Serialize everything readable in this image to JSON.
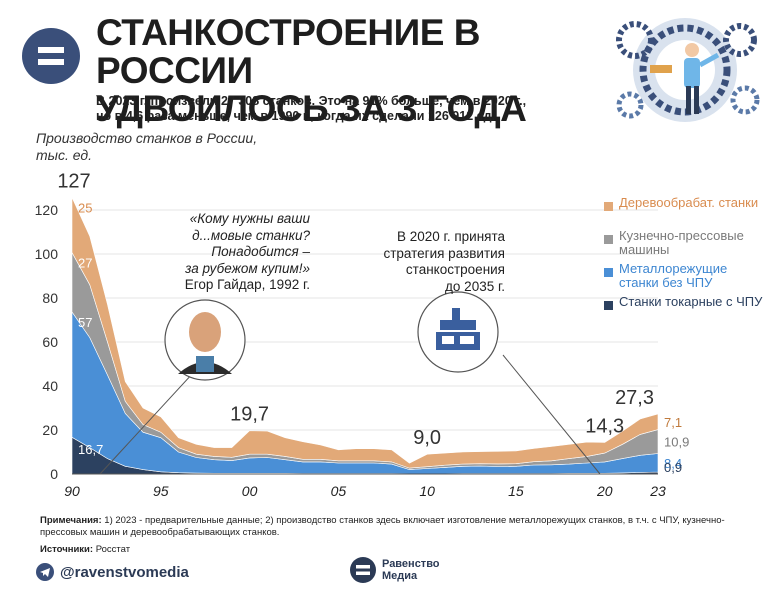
{
  "header": {
    "title_line1": "СТАНКОСТРОЕНИЕ В РОССИИ",
    "title_line2": "УДВОИЛОСЬ ЗА 3 ГОДА",
    "subtitle_line1": "В 2023 г. произвели 27 308 станков. Это на 91% больше, чем в 2020 г.,",
    "subtitle_line2": "но в 4,6 раза меньше, чем в 1990 г., когда их сделали 126 912 ед."
  },
  "quote": {
    "line1": "«Кому нужны ваши",
    "line2": "д...мовые станки?",
    "line3": "Понадобится –",
    "line4": "за рубежом купим!»",
    "author": "Егор Гайдар, 1992 г."
  },
  "note2020": {
    "line1": "В 2020 г. принята",
    "line2": "стратегия развития",
    "line3": "станкостроения",
    "line4": "до 2035 г."
  },
  "footer": {
    "notes_label": "Примечания:",
    "notes_text": " 1) 2023 - предварительные данные; 2) производство станков здесь включает изготовление металлорежущих станков, в т.ч. с ЧПУ, кузнечно-прессовых машин и деревообрабатывающих станков.",
    "sources_label": "Источники:",
    "sources_text": " Росстат",
    "telegram": "@ravenstvomedia",
    "brand_line1": "Равенство",
    "brand_line2": "Медиа"
  },
  "chart_data": {
    "type": "area",
    "stacked": true,
    "y_title_line1": "Производство станков в России,",
    "y_title_line2": "тыс. ед.",
    "ylim": [
      0,
      130
    ],
    "xlim": [
      1990,
      2023
    ],
    "y_ticks": [
      0,
      20,
      40,
      60,
      80,
      100,
      120
    ],
    "x_ticks": [
      {
        "value": 1990,
        "label": "90"
      },
      {
        "value": 1995,
        "label": "95"
      },
      {
        "value": 2000,
        "label": "00"
      },
      {
        "value": 2005,
        "label": "05"
      },
      {
        "value": 2010,
        "label": "10"
      },
      {
        "value": 2015,
        "label": "15"
      },
      {
        "value": 2020,
        "label": "20"
      },
      {
        "value": 2023,
        "label": "23"
      }
    ],
    "x": [
      1990,
      1991,
      1992,
      1993,
      1994,
      1995,
      1996,
      1997,
      1998,
      1999,
      2000,
      2001,
      2002,
      2003,
      2004,
      2005,
      2006,
      2007,
      2008,
      2009,
      2010,
      2011,
      2012,
      2013,
      2014,
      2015,
      2016,
      2017,
      2018,
      2019,
      2020,
      2021,
      2022,
      2023
    ],
    "series": [
      {
        "name": "Станки токарные с ЧПУ",
        "color": "#2c4160",
        "values": [
          16.7,
          12,
          7,
          3.5,
          2,
          1,
          0.6,
          0.4,
          0.3,
          0.3,
          0.3,
          0.3,
          0.3,
          0.2,
          0.2,
          0.2,
          0.2,
          0.2,
          0.2,
          0.1,
          0.1,
          0.1,
          0.2,
          0.2,
          0.2,
          0.2,
          0.2,
          0.2,
          0.3,
          0.3,
          0.3,
          0.5,
          0.7,
          0.9
        ]
      },
      {
        "name": "Металлорежущие станки без ЧПУ",
        "color": "#4a8fd6",
        "values": [
          57,
          50,
          38,
          24,
          17,
          15.5,
          9.4,
          7.1,
          6.2,
          5.8,
          7,
          7.2,
          6.2,
          5.3,
          5.3,
          4.8,
          4.8,
          4.8,
          4.3,
          1.9,
          2.4,
          2.9,
          3.3,
          3.4,
          3.2,
          3.3,
          3.9,
          4,
          4.2,
          4.7,
          5.2,
          6.5,
          7.8,
          8.4
        ]
      },
      {
        "name": "Кузнечно-прессовые машины",
        "color": "#9a9a9a",
        "values": [
          27,
          24,
          15,
          5.5,
          3.5,
          2.5,
          2,
          1.5,
          1.5,
          1.5,
          1.7,
          1.5,
          1.5,
          1.2,
          1.2,
          1,
          1,
          1,
          1,
          0.7,
          0.8,
          1,
          1,
          1.1,
          1.2,
          1.2,
          1.5,
          1.8,
          2.5,
          3,
          4,
          6.5,
          9.5,
          10.9
        ]
      },
      {
        "name": "Деревообрабат. станки",
        "color": "#e2a978",
        "values": [
          25,
          22,
          17,
          9,
          7.5,
          7,
          4.5,
          4.5,
          4,
          4.4,
          10.7,
          10.5,
          8.5,
          8,
          6.5,
          5,
          5.5,
          5.5,
          5.5,
          2.2,
          5.7,
          5.5,
          5.5,
          5.5,
          5.7,
          5.8,
          6,
          6.5,
          6.5,
          6.5,
          4.8,
          6,
          7,
          7.1
        ]
      }
    ],
    "totals_labels": [
      {
        "x": 1990,
        "text": "127"
      },
      {
        "x": 2000,
        "text": "19,7"
      },
      {
        "x": 2010,
        "text": "9,0"
      },
      {
        "x": 2020,
        "text": "14,3"
      },
      {
        "x": 2023,
        "text": "27,3"
      }
    ],
    "value_labels_1990": [
      {
        "series": 3,
        "text": "25"
      },
      {
        "series": 2,
        "text": "27"
      },
      {
        "series": 1,
        "text": "57"
      },
      {
        "series": 0,
        "text": "16,7"
      }
    ],
    "value_labels_2023": [
      {
        "series": 3,
        "text": "7,1"
      },
      {
        "series": 2,
        "text": "10,9"
      },
      {
        "series": 1,
        "text": "8,4"
      },
      {
        "series": 0,
        "text": "0,9"
      }
    ],
    "legend_position": "right"
  }
}
